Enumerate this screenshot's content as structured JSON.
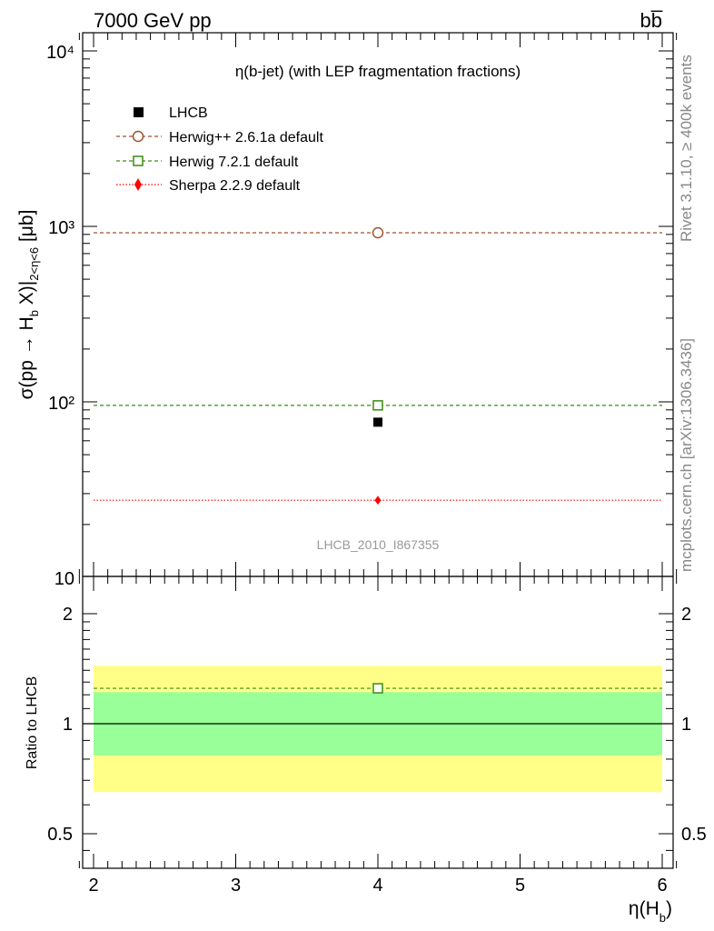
{
  "header": {
    "energy_label": "7000 GeV pp",
    "process_label": "bb̅"
  },
  "side_labels": {
    "rivet": "Rivet 3.1.10, ≥ 400k events",
    "mcplots": "mcplots.cern.ch [arXiv:1306.3436]"
  },
  "chart_data": [
    {
      "type": "scatter",
      "title": "η(b-jet) (with LEP fragmentation fractions)",
      "ylabel": "σ(pp → H_b X)|_{2<η<6} [μb]",
      "xlabel": "",
      "yscale": "log",
      "ylim": [
        10,
        13000
      ],
      "xlim": [
        1.9,
        6.1
      ],
      "y_tick_labels": [
        "10",
        "10²",
        "10³",
        "10⁴"
      ],
      "watermark": "LHCB_2010_I867355",
      "legend_position": "top-left",
      "series": [
        {
          "name": "LHCB",
          "color": "#000000",
          "marker": "filled-square",
          "x": [
            4
          ],
          "y": [
            76.6
          ],
          "line": "none"
        },
        {
          "name": "Herwig++ 2.6.1a default",
          "color": "#a0522d",
          "marker": "open-circle",
          "x": [
            4
          ],
          "y": [
            920
          ],
          "line": "dashed",
          "line_x_range": [
            2,
            6
          ]
        },
        {
          "name": "Herwig 7.2.1 default",
          "color": "#3a8c10",
          "marker": "open-square",
          "x": [
            4
          ],
          "y": [
            95.5
          ],
          "line": "dashed",
          "line_x_range": [
            2,
            6
          ]
        },
        {
          "name": "Sherpa 2.2.9 default",
          "color": "#ff0000",
          "marker": "filled-diamond",
          "x": [
            4
          ],
          "y": [
            27.5
          ],
          "line": "dotted",
          "line_x_range": [
            2,
            6
          ]
        }
      ]
    },
    {
      "type": "line",
      "ylabel": "Ratio to LHCB",
      "xlabel": "η(H_b)",
      "yscale": "log",
      "ylim": [
        0.42,
        2.5
      ],
      "xlim": [
        1.9,
        6.1
      ],
      "x_ticks": [
        2,
        3,
        4,
        5,
        6
      ],
      "y_ticks": [
        0.5,
        1,
        2
      ],
      "bands": [
        {
          "kind": "total-uncertainty",
          "color": "#ffff88",
          "x_range": [
            2,
            6
          ],
          "y_range": [
            0.65,
            1.44
          ]
        },
        {
          "kind": "stat-uncertainty",
          "color": "#99ff99",
          "x_range": [
            2,
            6
          ],
          "y_range": [
            0.82,
            1.22
          ]
        }
      ],
      "series": [
        {
          "name": "Herwig 7.2.1 default",
          "color": "#3a8c10",
          "marker": "open-square",
          "x": [
            4
          ],
          "y": [
            1.25
          ],
          "line": "dashed",
          "line_x_range": [
            2,
            6
          ]
        }
      ],
      "reference_line": 1
    }
  ]
}
